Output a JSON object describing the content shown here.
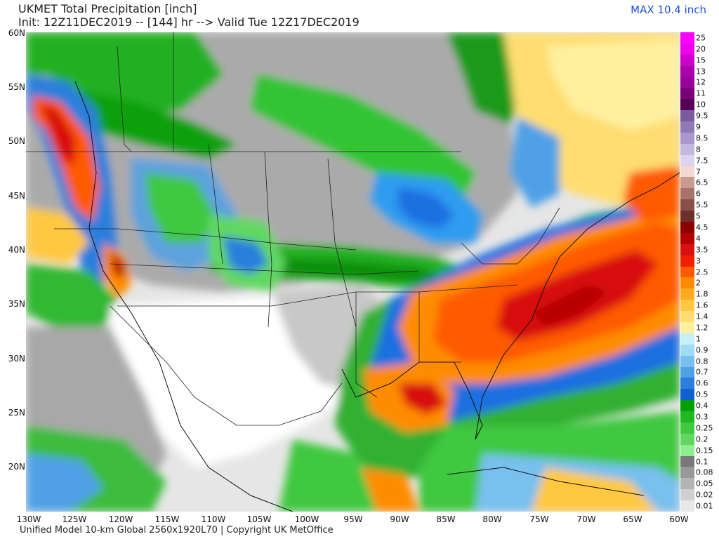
{
  "header": {
    "title": "UKMET Total Precipitation [inch]",
    "init": "Init: 12Z11DEC2019 -- [144] hr --> Valid Tue 12Z17DEC2019",
    "max": "MAX 10.4 inch"
  },
  "footer": "Unified Model 10-km Global 2560x1920L70 | Copyright UK MetOffice",
  "axes": {
    "lat_labels": [
      "60N",
      "55N",
      "50N",
      "45N",
      "40N",
      "35N",
      "30N",
      "25N",
      "20N"
    ],
    "lon_labels": [
      "130W",
      "125W",
      "120W",
      "115W",
      "110W",
      "105W",
      "100W",
      "95W",
      "90W",
      "85W",
      "80W",
      "75W",
      "70W",
      "65W",
      "60W"
    ]
  },
  "colorbar": {
    "levels": [
      "25",
      "20",
      "15",
      "13",
      "12",
      "11",
      "10",
      "9.5",
      "9",
      "8.5",
      "8",
      "7.5",
      "7",
      "6.5",
      "6",
      "5.5",
      "5",
      "4.5",
      "4",
      "3.5",
      "3",
      "2.5",
      "2",
      "1.8",
      "1.6",
      "1.4",
      "1.2",
      "1",
      "0.9",
      "0.8",
      "0.7",
      "0.6",
      "0.5",
      "0.4",
      "0.3",
      "0.25",
      "0.2",
      "0.15",
      "0.1",
      "0.08",
      "0.05",
      "0.02",
      "0.01"
    ],
    "colors": [
      "#ff00ff",
      "#ee00ee",
      "#cc00cc",
      "#aa00aa",
      "#990099",
      "#770077",
      "#550055",
      "#7a5c9e",
      "#8f7ab5",
      "#a898cc",
      "#c2b8e0",
      "#dcd4ee",
      "#f5d8d0",
      "#c89a90",
      "#a8736a",
      "#8a5048",
      "#6e2f2a",
      "#8b0000",
      "#b50000",
      "#d81010",
      "#f02000",
      "#ff5a00",
      "#ff8c00",
      "#ffaa20",
      "#ffc840",
      "#ffdd70",
      "#fff0a0",
      "#c8f0f8",
      "#a0dcf4",
      "#78c0ee",
      "#50a0e6",
      "#2a7fdc",
      "#1060d0",
      "#00a000",
      "#20b820",
      "#40c840",
      "#60d860",
      "#90ec90",
      "#787878",
      "#989898",
      "#b4b4b4",
      "#d0d0d0",
      "#e8e8e8"
    ]
  }
}
